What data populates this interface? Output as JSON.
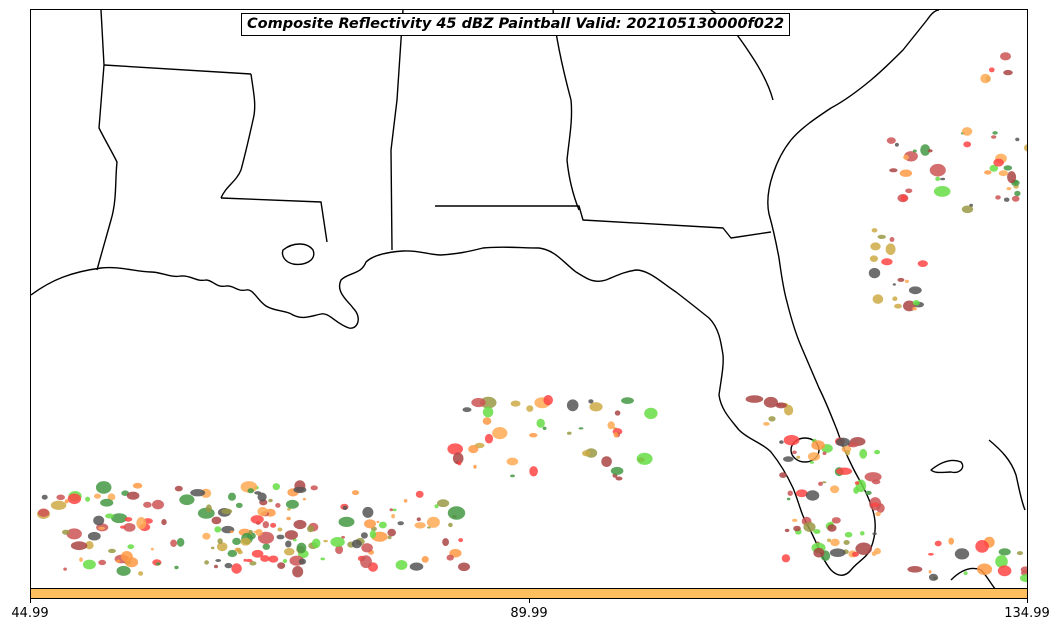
{
  "title": "Composite Reflectivity 45 dBZ Paintball Valid: 202105130000f022",
  "colorbar": {
    "color": "#ffbf5f",
    "ticks": [
      "44.99",
      "89.99",
      "134.99"
    ]
  },
  "colors": {
    "coastline": "#000000",
    "background": "#ffffff",
    "paintball_palette": [
      "#ff4444",
      "#ff9944",
      "#ffaa55",
      "#66dd44",
      "#449944",
      "#999944",
      "#555555",
      "#aa4444",
      "#cc5555",
      "#ccaa44"
    ]
  }
}
